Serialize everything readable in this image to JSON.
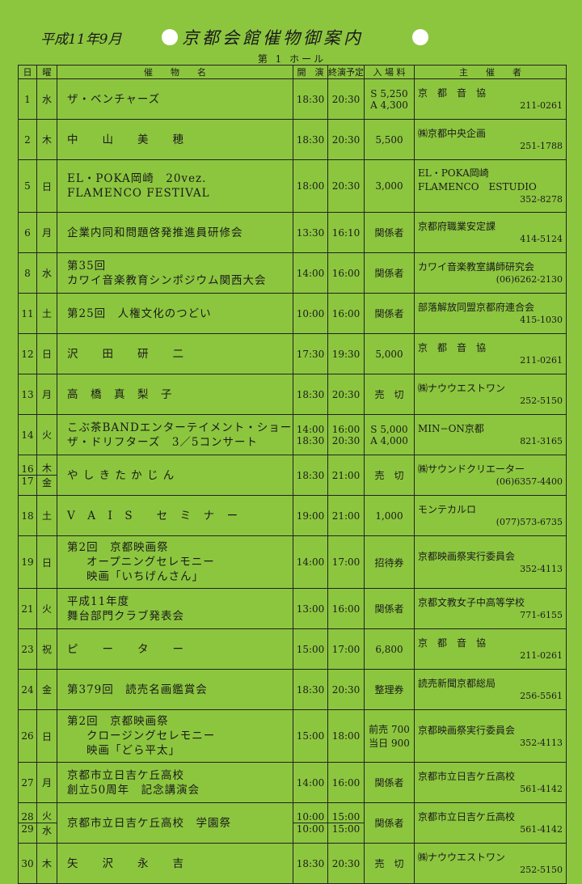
{
  "header": {
    "date": "平成11年9月",
    "title": "京都会館催物御案内",
    "hall": "第 1 ホール"
  },
  "table": {
    "columns": [
      "日",
      "曜",
      "催　　物　　名",
      "開　演",
      "終演予定",
      "入 場 料",
      "主　　催　　者"
    ],
    "rows": [
      {
        "days": [
          "1"
        ],
        "weekdays": [
          "水"
        ],
        "event": [
          "ザ・ベンチャーズ"
        ],
        "start": [
          "18:30"
        ],
        "end": [
          "20:30"
        ],
        "price": [
          "S 5,250",
          "A 4,300"
        ],
        "organizer": [
          "京　都　音　協"
        ],
        "phone": "211-0261"
      },
      {
        "days": [
          "2"
        ],
        "weekdays": [
          "木"
        ],
        "event": [
          "中　　山　　美　　穂"
        ],
        "start": [
          "18:30"
        ],
        "end": [
          "20:30"
        ],
        "price": [
          "5,500"
        ],
        "organizer": [
          "㈱京都中央企画"
        ],
        "phone": "251-1788"
      },
      {
        "days": [
          "5"
        ],
        "weekdays": [
          "日"
        ],
        "event": [
          "EL・POKA岡崎　20vez.",
          "FLAMENCO FESTIVAL"
        ],
        "start": [
          "18:00"
        ],
        "end": [
          "20:30"
        ],
        "price": [
          "3,000"
        ],
        "organizer": [
          "EL・POKA岡崎",
          "FLAMENCO　ESTUDIO"
        ],
        "phone": "352-8278"
      },
      {
        "days": [
          "6"
        ],
        "weekdays": [
          "月"
        ],
        "event": [
          "企業内同和問題啓発推進員研修会"
        ],
        "start": [
          "13:30"
        ],
        "end": [
          "16:10"
        ],
        "price": [
          "関係者"
        ],
        "organizer": [
          "京都府職業安定課"
        ],
        "phone": "414-5124"
      },
      {
        "days": [
          "8"
        ],
        "weekdays": [
          "水"
        ],
        "event": [
          "第35回",
          "カワイ音楽教育シンポジウム関西大会"
        ],
        "start": [
          "14:00"
        ],
        "end": [
          "16:00"
        ],
        "price": [
          "関係者"
        ],
        "organizer": [
          "カワイ音楽教室講師研究会"
        ],
        "phone": "(06)6262-2130"
      },
      {
        "days": [
          "11"
        ],
        "weekdays": [
          "土"
        ],
        "event": [
          "第25回　人権文化のつどい"
        ],
        "start": [
          "10:00"
        ],
        "end": [
          "16:00"
        ],
        "price": [
          "関係者"
        ],
        "organizer": [
          "部落解放同盟京都府連合会"
        ],
        "phone": "415-1030"
      },
      {
        "days": [
          "12"
        ],
        "weekdays": [
          "日"
        ],
        "event": [
          "沢　　田　　研　　二"
        ],
        "start": [
          "17:30"
        ],
        "end": [
          "19:30"
        ],
        "price": [
          "5,000"
        ],
        "organizer": [
          "京　都　音　協"
        ],
        "phone": "211-0261"
      },
      {
        "days": [
          "13"
        ],
        "weekdays": [
          "月"
        ],
        "event": [
          "高　橋　真　梨　子"
        ],
        "start": [
          "18:30"
        ],
        "end": [
          "20:30"
        ],
        "price": [
          "売　切"
        ],
        "organizer": [
          "㈱ナウウエストワン"
        ],
        "phone": "252-5150"
      },
      {
        "days": [
          "14"
        ],
        "weekdays": [
          "火"
        ],
        "event": [
          "こぶ茶BANDエンターテイメント・ショー",
          "ザ・ドリフターズ　3／5コンサート"
        ],
        "start": [
          "14:00",
          "18:30"
        ],
        "end": [
          "16:00",
          "20:30"
        ],
        "price": [
          "S 5,000",
          "A 4,000"
        ],
        "organizer": [
          "MIN−ON京都"
        ],
        "phone": "821-3165"
      },
      {
        "days": [
          "16",
          "17"
        ],
        "weekdays": [
          "木",
          "金"
        ],
        "event": [
          "や し き た か じ ん"
        ],
        "start": [
          "18:30"
        ],
        "end": [
          "21:00"
        ],
        "price": [
          "売　切"
        ],
        "organizer": [
          "㈱サウンドクリエーター"
        ],
        "phone": "(06)6357-4400"
      },
      {
        "days": [
          "18"
        ],
        "weekdays": [
          "土"
        ],
        "event": [
          "V　A　I　S　　セ　ミ　ナ　ー"
        ],
        "start": [
          "19:00"
        ],
        "end": [
          "21:00"
        ],
        "price": [
          "1,000"
        ],
        "organizer": [
          "モンテカルロ"
        ],
        "phone": "(077)573-6735"
      },
      {
        "days": [
          "19"
        ],
        "weekdays": [
          "日"
        ],
        "event": [
          "第2回　京都映画祭",
          "オープニングセレモニー",
          "映画「いちげんさん」"
        ],
        "start": [
          "14:00"
        ],
        "end": [
          "17:00"
        ],
        "price": [
          "招待券"
        ],
        "organizer": [
          "京都映画祭実行委員会"
        ],
        "phone": "352-4113"
      },
      {
        "days": [
          "21"
        ],
        "weekdays": [
          "火"
        ],
        "event": [
          "平成11年度",
          "舞台部門クラブ発表会"
        ],
        "start": [
          "13:00"
        ],
        "end": [
          "16:00"
        ],
        "price": [
          "関係者"
        ],
        "organizer": [
          "京都文教女子中高等学校"
        ],
        "phone": "771-6155"
      },
      {
        "days": [
          "23"
        ],
        "weekdays": [
          "祝"
        ],
        "event": [
          "ピ　　ー　　タ　　ー"
        ],
        "start": [
          "15:00"
        ],
        "end": [
          "17:00"
        ],
        "price": [
          "6,800"
        ],
        "organizer": [
          "京　都　音　協"
        ],
        "phone": "211-0261"
      },
      {
        "days": [
          "24"
        ],
        "weekdays": [
          "金"
        ],
        "event": [
          "第379回　読売名画鑑賞会"
        ],
        "start": [
          "18:30"
        ],
        "end": [
          "20:30"
        ],
        "price": [
          "整理券"
        ],
        "organizer": [
          "読売新聞京都総局"
        ],
        "phone": "256-5561"
      },
      {
        "days": [
          "26"
        ],
        "weekdays": [
          "日"
        ],
        "event": [
          "第2回　京都映画祭",
          "クロージングセレモニー",
          "映画「どら平太」"
        ],
        "start": [
          "15:00"
        ],
        "end": [
          "18:00"
        ],
        "price": [
          "前売 700",
          "当日 900"
        ],
        "organizer": [
          "京都映画祭実行委員会"
        ],
        "phone": "352-4113"
      },
      {
        "days": [
          "27"
        ],
        "weekdays": [
          "月"
        ],
        "event": [
          "京都市立日吉ケ丘高校",
          "創立50周年　記念講演会"
        ],
        "start": [
          "14:00"
        ],
        "end": [
          "16:00"
        ],
        "price": [
          "関係者"
        ],
        "organizer": [
          "京都市立日吉ケ丘高校"
        ],
        "phone": "561-4142"
      },
      {
        "days": [
          "28",
          "29"
        ],
        "weekdays": [
          "火",
          "水"
        ],
        "event": [
          "京都市立日吉ケ丘高校　学園祭"
        ],
        "start": [
          "10:00",
          "10:00"
        ],
        "end": [
          "15:00",
          "15:00"
        ],
        "price": [
          "関係者"
        ],
        "organizer": [
          "京都市立日吉ケ丘高校"
        ],
        "phone": "561-4142"
      },
      {
        "days": [
          "30"
        ],
        "weekdays": [
          "木"
        ],
        "event": [
          "矢　　沢　　永　　吉"
        ],
        "start": [
          "18:30"
        ],
        "end": [
          "20:30"
        ],
        "price": [
          "売　切"
        ],
        "organizer": [
          "㈱ナウウエストワン"
        ],
        "phone": "252-5150"
      }
    ]
  }
}
